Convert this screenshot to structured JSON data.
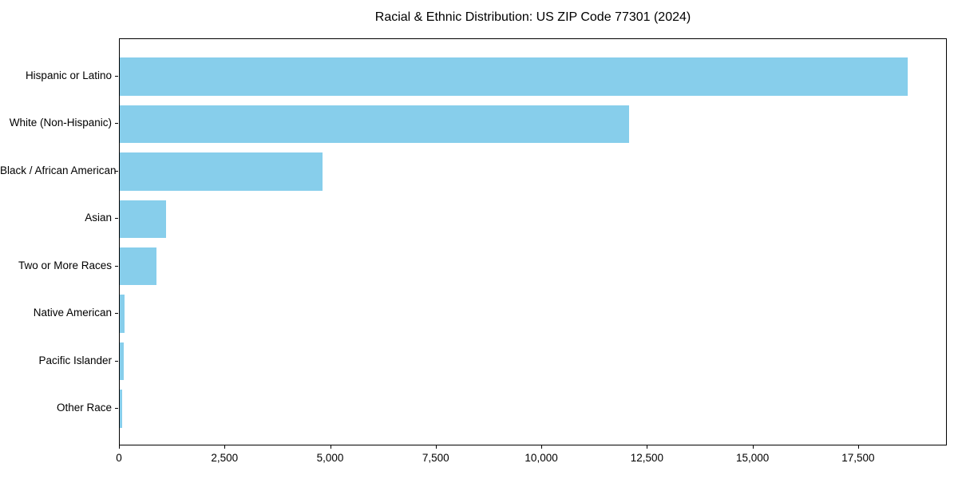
{
  "figure": {
    "background": "#ffffff",
    "text_color": "#000000",
    "spine_color": "#000000"
  },
  "chart_data": {
    "type": "bar",
    "orientation": "horizontal",
    "title": "Racial & Ethnic Distribution: US ZIP Code 77301 (2024)",
    "categories": [
      "Hispanic or Latino",
      "White (Non-Hispanic)",
      "Black / African American",
      "Asian",
      "Two or More Races",
      "Native American",
      "Pacific Islander",
      "Other Race"
    ],
    "values": [
      18650,
      12060,
      4800,
      1090,
      870,
      110,
      90,
      50
    ],
    "bar_color": "#87CEEB",
    "xlabel": "",
    "ylabel": "",
    "xticks": [
      0,
      2500,
      5000,
      7500,
      10000,
      12500,
      15000,
      17500
    ],
    "xtick_labels": [
      "0",
      "2,500",
      "5,000",
      "7,500",
      "10,000",
      "12,500",
      "15,000",
      "17,500"
    ],
    "xlim": [
      0,
      19600
    ],
    "grid": false,
    "legend": "none"
  }
}
